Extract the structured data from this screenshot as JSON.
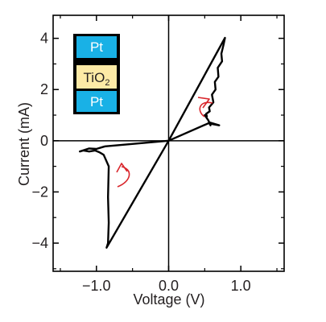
{
  "chart_data": {
    "type": "line",
    "xlabel": "Voltage (V)",
    "ylabel": "Current (mA)",
    "xlim": [
      -1.6,
      1.6
    ],
    "ylim": [
      -5.1,
      4.9
    ],
    "xticks": [
      -1.0,
      0.0,
      1.0
    ],
    "xtick_labels": [
      "−1.0",
      "0.0",
      "1.0"
    ],
    "yticks": [
      -4,
      -2,
      0,
      2,
      4
    ],
    "ytick_labels": [
      "−4",
      "−2",
      "0",
      "2",
      "4"
    ],
    "grid": false,
    "zero_lines": true,
    "series": [
      {
        "color": "#000000",
        "x": [
          0.0,
          0.78,
          0.76,
          0.73,
          0.74,
          0.68,
          0.69,
          0.64,
          0.65,
          0.6,
          0.62,
          0.56,
          0.57,
          0.52,
          0.53,
          0.5,
          0.55,
          0.58,
          0.56,
          0.7,
          0.55,
          0.0,
          -0.86,
          -0.84,
          -0.83,
          -0.84,
          -0.83,
          -0.9,
          -0.96,
          -1.02,
          -1.1,
          -1.18,
          -1.23,
          -1.1,
          -1.0,
          -0.92,
          -0.88,
          0.0
        ],
        "y": [
          0.0,
          4.02,
          3.75,
          3.4,
          3.1,
          2.85,
          2.5,
          2.3,
          2.0,
          1.8,
          1.5,
          1.3,
          1.15,
          1.05,
          0.95,
          1.0,
          0.8,
          0.6,
          0.72,
          0.6,
          0.68,
          0.0,
          -4.18,
          -4.0,
          -3.2,
          -2.2,
          -1.0,
          -0.55,
          -0.45,
          -0.38,
          -0.42,
          -0.38,
          -0.42,
          -0.3,
          -0.32,
          -0.25,
          -0.22,
          0.0
        ]
      }
    ],
    "annotations": [
      {
        "type": "arrow",
        "color": "#d9262c",
        "direction": "counter-clockwise",
        "at": [
          0.47,
          1.55
        ]
      },
      {
        "type": "arrow",
        "color": "#d9262c",
        "direction": "counter-clockwise",
        "at": [
          -0.62,
          -1.55
        ]
      }
    ]
  },
  "inset": {
    "layers": [
      {
        "label": "Pt",
        "fill": "#19b1e6",
        "text_color": "#ffffff"
      },
      {
        "label": "TiO",
        "sub": "2",
        "fill": "#fdeaa6",
        "text_color": "#231f20"
      },
      {
        "label": "Pt",
        "fill": "#19b1e6",
        "text_color": "#ffffff"
      }
    ]
  }
}
